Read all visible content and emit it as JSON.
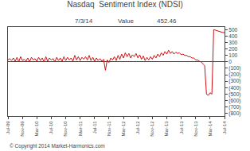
{
  "chart_data": {
    "type": "line",
    "title": "Nasdaq  Sentiment Index (NDSI)",
    "annotations": [
      "7/3/14",
      "Value",
      "452.46",
      "© Copyright 2014 Market-Harmonics.com"
    ],
    "color": "#cc1111",
    "x": [
      0,
      0.5,
      1,
      1.5,
      2,
      2.5,
      3,
      3.5,
      4,
      4.5,
      5,
      5.5,
      6,
      6.5,
      7,
      7.5,
      8,
      8.5,
      9,
      9.5,
      10,
      10.5,
      11,
      11.5,
      12,
      12.5,
      13,
      13.5,
      14,
      14.5,
      15,
      15.5,
      16,
      16.5,
      17,
      17.5,
      18,
      18.5,
      19,
      19.5,
      20,
      20.5,
      21,
      21.5,
      22,
      22.5,
      23,
      23.5,
      24,
      24.5,
      25,
      25.5,
      26,
      26.5,
      27,
      27.5,
      28,
      28.5,
      29,
      29.5,
      30,
      30.5,
      31,
      31.5,
      32,
      32.5,
      33,
      33.5,
      34,
      34.5,
      35,
      35.5,
      36,
      36.5,
      37,
      37.5,
      38,
      38.5,
      39,
      39.5,
      40,
      40.5,
      41,
      41.5,
      42,
      42.5,
      43,
      43.5,
      44,
      44.5,
      45,
      45.5,
      46,
      46.5,
      47,
      47.5,
      48,
      48.5,
      49,
      49.5,
      50,
      50.5,
      51,
      51.5,
      52,
      52.5,
      53,
      53.5,
      54,
      54.5,
      55,
      55.5,
      56,
      56.5,
      57,
      57.5,
      58,
      58.5,
      59,
      59.5,
      60
    ],
    "values": [
      30,
      50,
      20,
      60,
      10,
      70,
      0,
      80,
      20,
      40,
      10,
      60,
      0,
      70,
      30,
      50,
      10,
      70,
      20,
      60,
      0,
      80,
      10,
      60,
      30,
      50,
      0,
      70,
      20,
      60,
      10,
      80,
      20,
      70,
      30,
      60,
      10,
      100,
      30,
      80,
      20,
      70,
      40,
      80,
      30,
      100,
      20,
      70,
      10,
      60,
      20,
      50,
      10,
      40,
      -130,
      30,
      -10,
      60,
      30,
      80,
      20,
      100,
      40,
      120,
      60,
      140,
      80,
      130,
      60,
      110,
      80,
      130,
      60,
      110,
      40,
      90,
      20,
      70,
      30,
      80,
      40,
      100,
      60,
      120,
      80,
      140,
      100,
      160,
      120,
      180,
      130,
      160,
      120,
      150,
      130,
      140,
      110,
      120,
      100,
      100,
      80,
      80,
      60,
      60,
      30,
      30,
      10,
      0,
      -30,
      -60,
      -500,
      -520,
      -480,
      -500,
      500,
      490,
      480,
      470,
      460,
      455,
      452
    ],
    "xlim": [
      0,
      60
    ],
    "xticks": [
      {
        "value": 0,
        "label": "Jul-09"
      },
      {
        "value": 4,
        "label": "Nov-09"
      },
      {
        "value": 8,
        "label": "Mar-10"
      },
      {
        "value": 12,
        "label": "Jul-10"
      },
      {
        "value": 16,
        "label": "Nov-10"
      },
      {
        "value": 20,
        "label": "Mar-11"
      },
      {
        "value": 24,
        "label": "Jul-11"
      },
      {
        "value": 28,
        "label": "Nov-11"
      },
      {
        "value": 32,
        "label": "Mar-12"
      },
      {
        "value": 36,
        "label": "Jul-12"
      },
      {
        "value": 40,
        "label": "Nov-12"
      },
      {
        "value": 44,
        "label": "Mar-13"
      },
      {
        "value": 48,
        "label": "Jul-13"
      },
      {
        "value": 52,
        "label": "Nov-13"
      },
      {
        "value": 56,
        "label": "Mar-14"
      },
      {
        "value": 60,
        "label": "Jul-14"
      }
    ],
    "ylim": [
      -840,
      540
    ],
    "yticks": [
      500,
      400,
      300,
      200,
      100,
      0,
      {
        "value": -100,
        "label": "(100)"
      },
      {
        "value": -200,
        "label": "(200)"
      },
      {
        "value": -300,
        "label": "(300)"
      },
      {
        "value": -400,
        "label": "(400)"
      },
      {
        "value": -500,
        "label": "(500)"
      },
      {
        "value": -600,
        "label": "(600)"
      },
      {
        "value": -700,
        "label": "(700)"
      },
      {
        "value": -800,
        "label": "(800)"
      }
    ],
    "grid": false
  }
}
